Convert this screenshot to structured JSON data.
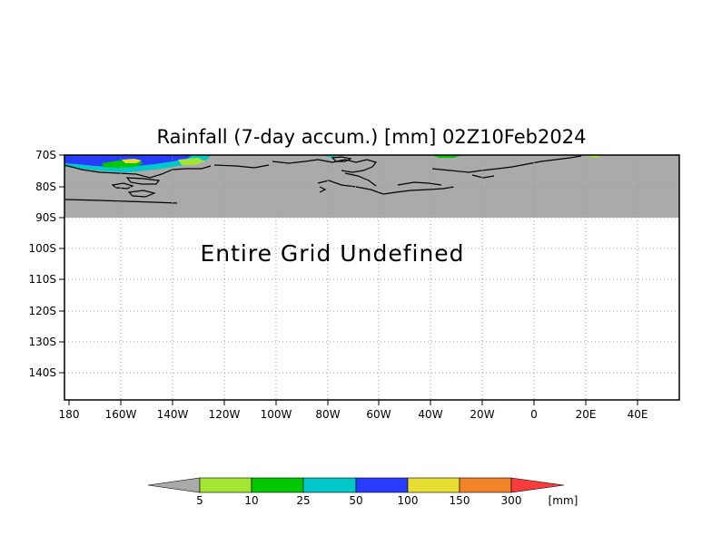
{
  "title": "Rainfall (7-day accum.) [mm] 02Z10Feb2024",
  "message": "Entire Grid Undefined",
  "map": {
    "lat_labels": [
      "70S",
      "80S",
      "90S",
      "100S",
      "110S",
      "120S",
      "130S",
      "140S"
    ],
    "lon_labels": [
      "180",
      "160W",
      "140W",
      "120W",
      "100W",
      "80W",
      "60W",
      "40W",
      "20W",
      "0",
      "20E",
      "40E"
    ],
    "lat_range": [
      "70S",
      "150S"
    ],
    "lon_range": [
      "180",
      "57E"
    ],
    "grid": "dotted",
    "colors": {
      "undefined_fill": "#aaaaaa",
      "frame": "#000000",
      "grid": "#9a9a9a"
    }
  },
  "colorbar": {
    "labels": [
      "5",
      "10",
      "25",
      "50",
      "100",
      "150",
      "300"
    ],
    "unit": "[mm]",
    "colors": [
      "#aaaaaa",
      "#a0e632",
      "#00c800",
      "#00c8c8",
      "#283cff",
      "#e6dc32",
      "#f08228",
      "#fa3c3c"
    ]
  }
}
